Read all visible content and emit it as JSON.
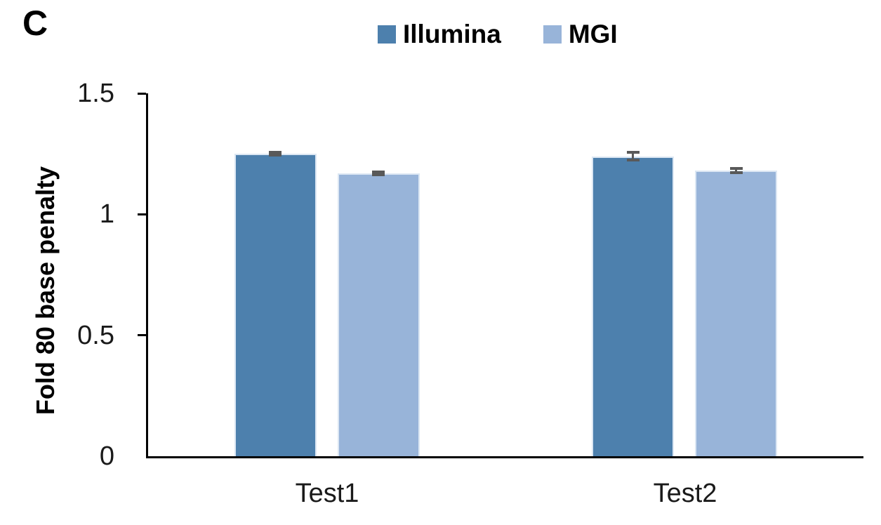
{
  "panel_label": "C",
  "chart_data": {
    "type": "bar",
    "title": "",
    "categories": [
      "Test1",
      "Test2"
    ],
    "series": [
      {
        "name": "Illumina",
        "color": "#4d80ad",
        "values": [
          1.25,
          1.24
        ],
        "errors": [
          0.005,
          0.016
        ]
      },
      {
        "name": "MGI",
        "color": "#98b4d9",
        "values": [
          1.17,
          1.18
        ],
        "errors": [
          0.006,
          0.009
        ]
      }
    ],
    "xlabel": "",
    "ylabel": "Fold 80 base penalty",
    "ylim": [
      0,
      1.5
    ],
    "yticks": [
      0,
      0.5,
      1,
      1.5
    ],
    "ytick_labels": [
      "0",
      "0.5",
      "1",
      "1.5"
    ],
    "legend_position": "top",
    "grid": false,
    "bar_border_color": "#dce7f3",
    "error_bar_color": "#595959",
    "axis_color": "#000000"
  }
}
